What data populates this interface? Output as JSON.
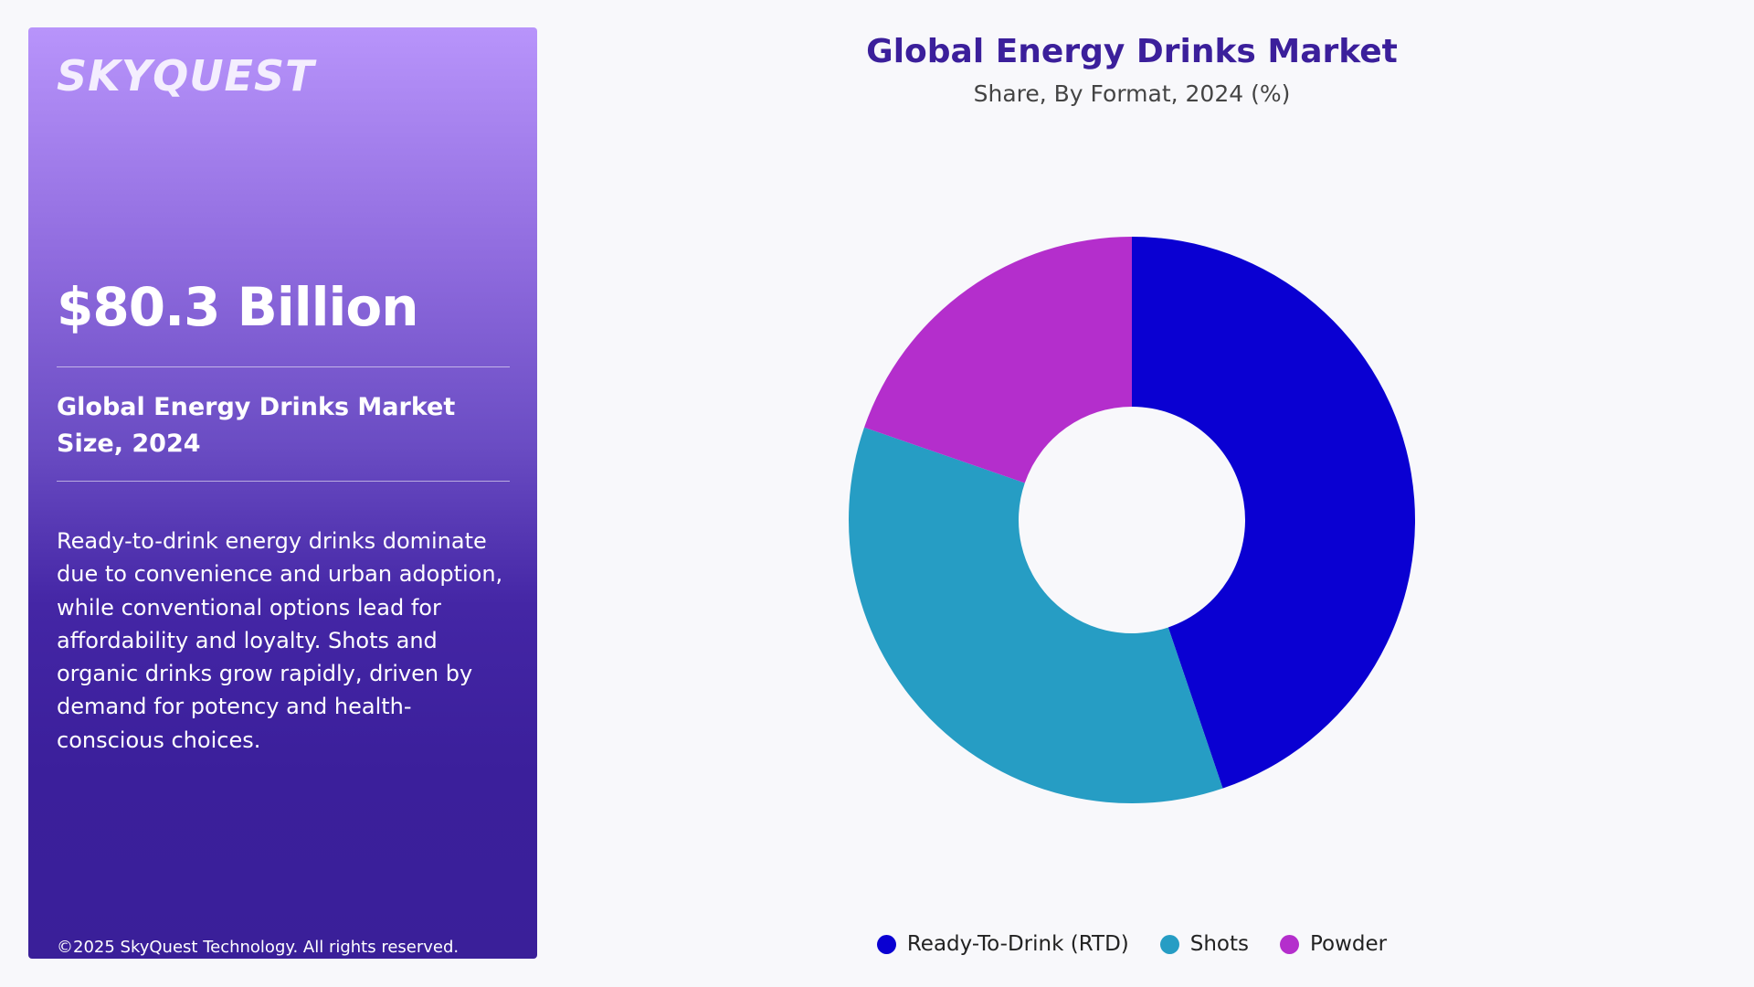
{
  "panel": {
    "logo": "SKYQUEST",
    "market_value": "$80.3 Billion",
    "size_label": "Global Energy Drinks Market Size, 2024",
    "description": "Ready-to-drink energy drinks dominate due to convenience and urban adoption, while conventional options lead for affordability and loyalty. Shots and organic drinks grow rapidly, driven by demand for potency and health-conscious choices.",
    "copyright": "©2025 SkyQuest Technology. All rights reserved."
  },
  "chart_data": {
    "type": "pie",
    "title": "Global Energy Drinks Market",
    "subtitle": "Share, By Format, 2024 (%)",
    "donut": true,
    "legend_position": "bottom",
    "categories": [
      "Ready-To-Drink (RTD)",
      "Shots",
      "Powder"
    ],
    "values": [
      44.8,
      35.5,
      19.7
    ],
    "colors": [
      "#0a00d2",
      "#269dc4",
      "#b42ecc"
    ]
  }
}
